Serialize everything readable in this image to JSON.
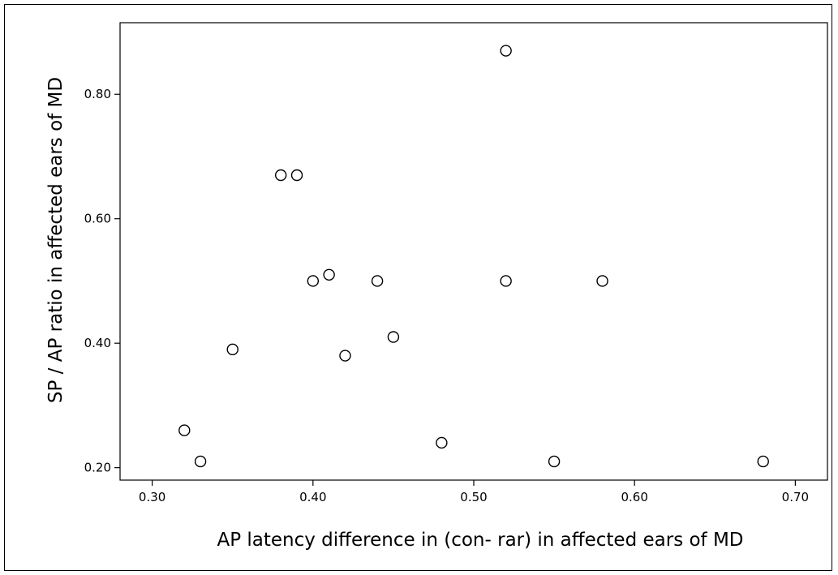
{
  "chart_data": {
    "type": "scatter",
    "xlabel": "AP latency difference in (con- rar) in affected ears of MD",
    "ylabel": "SP / AP ratio in affected ears of MD",
    "xlim": [
      0.28,
      0.72
    ],
    "ylim": [
      0.18,
      0.915
    ],
    "xticks": [
      0.3,
      0.4,
      0.5,
      0.6,
      0.7
    ],
    "yticks": [
      0.2,
      0.4,
      0.6,
      0.8
    ],
    "xtick_labels": [
      "0.30",
      "0.40",
      "0.50",
      "0.60",
      "0.70"
    ],
    "ytick_labels": [
      "0.20",
      "0.40",
      "0.60",
      "0.80"
    ],
    "grid": false,
    "points": [
      {
        "x": 0.32,
        "y": 0.26
      },
      {
        "x": 0.33,
        "y": 0.21
      },
      {
        "x": 0.35,
        "y": 0.39
      },
      {
        "x": 0.38,
        "y": 0.67
      },
      {
        "x": 0.39,
        "y": 0.67
      },
      {
        "x": 0.4,
        "y": 0.5
      },
      {
        "x": 0.41,
        "y": 0.51
      },
      {
        "x": 0.42,
        "y": 0.38
      },
      {
        "x": 0.44,
        "y": 0.5
      },
      {
        "x": 0.45,
        "y": 0.41
      },
      {
        "x": 0.48,
        "y": 0.24
      },
      {
        "x": 0.52,
        "y": 0.87
      },
      {
        "x": 0.52,
        "y": 0.5
      },
      {
        "x": 0.55,
        "y": 0.21
      },
      {
        "x": 0.58,
        "y": 0.5
      },
      {
        "x": 0.68,
        "y": 0.21
      }
    ],
    "colors": {
      "marker_stroke": "#000000",
      "marker_fill": "#ffffff",
      "axis": "#000000"
    }
  }
}
